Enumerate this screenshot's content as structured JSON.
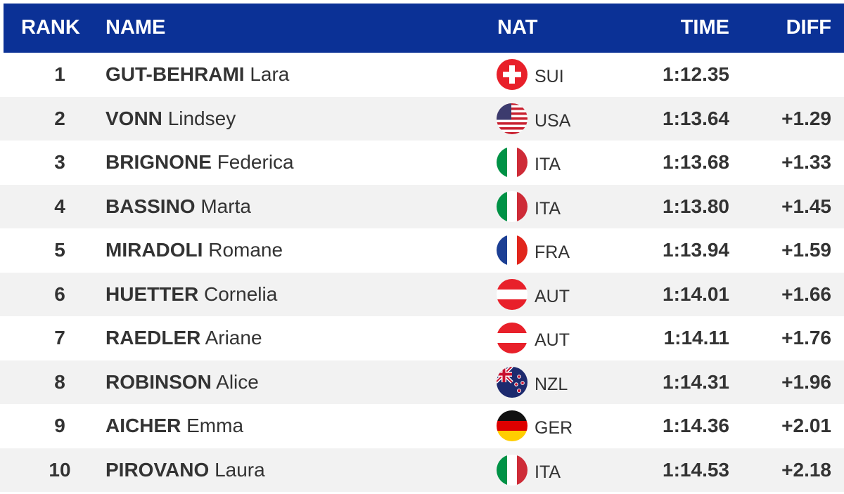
{
  "table": {
    "columns": [
      "RANK",
      "NAME",
      "NAT",
      "TIME",
      "DIFF"
    ],
    "rows": [
      {
        "rank": 1,
        "surname": "GUT-BEHRAMI",
        "given": "Lara",
        "nat": "SUI",
        "time": "1:12.35"
      },
      {
        "rank": 2,
        "surname": "VONN",
        "given": "Lindsey",
        "nat": "USA",
        "time": "1:13.64",
        "diff": "+1.29"
      },
      {
        "rank": 3,
        "surname": "BRIGNONE",
        "given": "Federica",
        "nat": "ITA",
        "time": "1:13.68",
        "diff": "+1.33"
      },
      {
        "rank": 4,
        "surname": "BASSINO",
        "given": "Marta",
        "nat": "ITA",
        "time": "1:13.80",
        "diff": "+1.45"
      },
      {
        "rank": 5,
        "surname": "MIRADOLI",
        "given": "Romane",
        "nat": "FRA",
        "time": "1:13.94",
        "diff": "+1.59"
      },
      {
        "rank": 6,
        "surname": "HUETTER",
        "given": "Cornelia",
        "nat": "AUT",
        "time": "1:14.01",
        "diff": "+1.66"
      },
      {
        "rank": 7,
        "surname": "RAEDLER",
        "given": "Ariane",
        "nat": "AUT",
        "time": "1:14.11",
        "diff": "+1.76"
      },
      {
        "rank": 8,
        "surname": "ROBINSON",
        "given": "Alice",
        "nat": "NZL",
        "time": "1:14.31",
        "diff": "+1.96"
      },
      {
        "rank": 9,
        "surname": "AICHER",
        "given": "Emma",
        "nat": "GER",
        "time": "1:14.36",
        "diff": "+2.01"
      },
      {
        "rank": 10,
        "surname": "PIROVANO",
        "given": "Laura",
        "nat": "ITA",
        "time": "1:14.53",
        "diff": "+2.18"
      }
    ]
  }
}
